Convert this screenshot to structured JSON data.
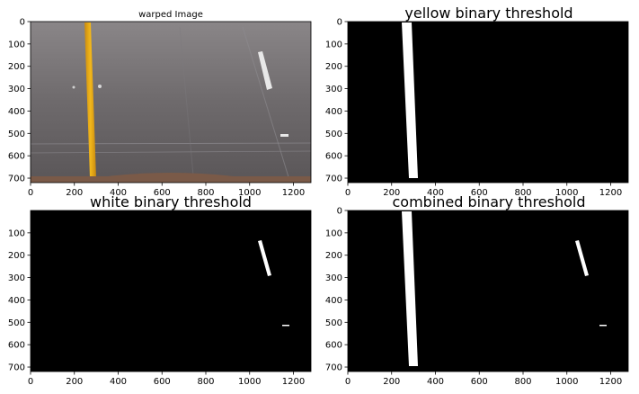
{
  "chart_data": [
    {
      "type": "image",
      "title": "warped Image",
      "image": "warped",
      "xlim": [
        0,
        1280
      ],
      "ylim": [
        720,
        0
      ],
      "xticks": [
        0,
        200,
        400,
        600,
        800,
        1000,
        1200
      ],
      "yticks": [
        0,
        100,
        200,
        300,
        400,
        500,
        600,
        700
      ]
    },
    {
      "type": "image",
      "title": "yellow binary threshold",
      "image": "yellow",
      "xlim": [
        0,
        1280
      ],
      "ylim": [
        720,
        0
      ],
      "xticks": [
        0,
        200,
        400,
        600,
        800,
        1000,
        1200
      ],
      "yticks": [
        0,
        100,
        200,
        300,
        400,
        500,
        600,
        700
      ]
    },
    {
      "type": "image",
      "title": "white binary threshold",
      "image": "white",
      "xlim": [
        0,
        1280
      ],
      "ylim": [
        720,
        0
      ],
      "xticks": [
        0,
        200,
        400,
        600,
        800,
        1000,
        1200
      ],
      "yticks": [
        100,
        200,
        300,
        400,
        500,
        600,
        700
      ]
    },
    {
      "type": "image",
      "title": "combined binary threshold",
      "image": "combined",
      "xlim": [
        0,
        1280
      ],
      "ylim": [
        720,
        0
      ],
      "xticks": [
        0,
        200,
        400,
        600,
        800,
        1000,
        1200
      ],
      "yticks": [
        0,
        100,
        200,
        300,
        400,
        500,
        600,
        700
      ]
    }
  ]
}
